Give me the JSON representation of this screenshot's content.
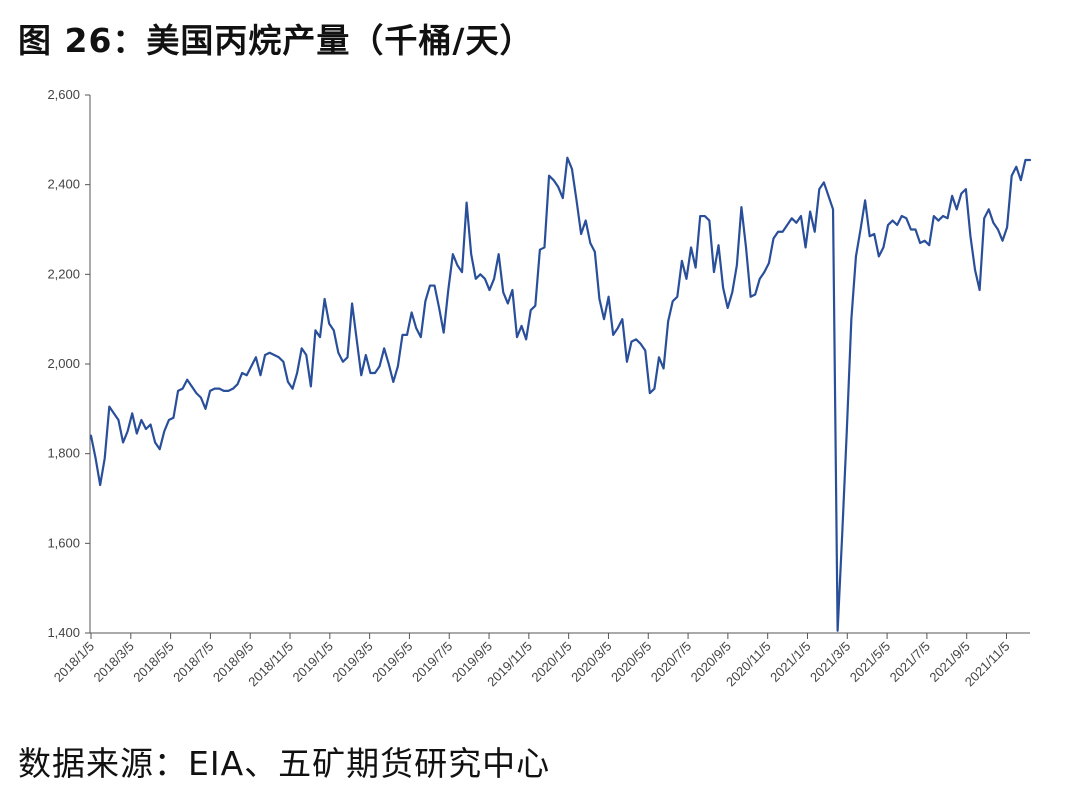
{
  "title": "图 26：美国丙烷产量（千桶/天）",
  "source": "数据来源：EIA、五矿期货研究中心",
  "colors": {
    "line": "#2a4f9a",
    "axis": "#555555"
  },
  "chart_data": {
    "type": "line",
    "title": "图 26：美国丙烷产量（千桶/天）",
    "ylim": [
      1400,
      2600
    ],
    "yticks": [
      "1,400",
      "1,600",
      "1,800",
      "2,000",
      "2,200",
      "2,400",
      "2,600"
    ],
    "xlabels": [
      "2018/1/5",
      "2018/3/5",
      "2018/5/5",
      "2018/7/5",
      "2018/9/5",
      "2018/11/5",
      "2019/1/5",
      "2019/3/5",
      "2019/5/5",
      "2019/7/5",
      "2019/9/5",
      "2019/11/5",
      "2020/1/5",
      "2020/3/5",
      "2020/5/5",
      "2020/7/5",
      "2020/9/5",
      "2020/11/5",
      "2021/1/5",
      "2021/3/5",
      "2021/5/5",
      "2021/7/5",
      "2021/9/5",
      "2021/11/5"
    ],
    "grid": false,
    "legend": "none",
    "series": [
      {
        "name": "",
        "frequency": "weekly",
        "values": [
          1840,
          1790,
          1730,
          1790,
          1905,
          1890,
          1875,
          1825,
          1850,
          1890,
          1845,
          1875,
          1855,
          1865,
          1825,
          1810,
          1850,
          1875,
          1880,
          1940,
          1945,
          1965,
          1950,
          1935,
          1925,
          1900,
          1940,
          1945,
          1945,
          1940,
          1940,
          1945,
          1955,
          1980,
          1975,
          1995,
          2015,
          1975,
          2020,
          2025,
          2020,
          2015,
          2005,
          1960,
          1945,
          1980,
          2035,
          2020,
          1950,
          2075,
          2060,
          2145,
          2090,
          2075,
          2025,
          2005,
          2015,
          2135,
          2055,
          1975,
          2020,
          1980,
          1980,
          1995,
          2035,
          2000,
          1960,
          1995,
          2065,
          2065,
          2115,
          2080,
          2060,
          2140,
          2175,
          2175,
          2125,
          2070,
          2165,
          2245,
          2220,
          2205,
          2360,
          2245,
          2190,
          2200,
          2190,
          2165,
          2190,
          2245,
          2160,
          2135,
          2165,
          2060,
          2085,
          2055,
          2120,
          2130,
          2255,
          2260,
          2420,
          2410,
          2395,
          2370,
          2460,
          2435,
          2365,
          2290,
          2320,
          2270,
          2250,
          2145,
          2100,
          2150,
          2065,
          2080,
          2100,
          2005,
          2050,
          2055,
          2045,
          2030,
          1935,
          1945,
          2015,
          1990,
          2095,
          2140,
          2150,
          2230,
          2190,
          2260,
          2215,
          2330,
          2330,
          2320,
          2205,
          2265,
          2170,
          2125,
          2160,
          2220,
          2350,
          2260,
          2150,
          2155,
          2190,
          2205,
          2225,
          2280,
          2295,
          2295,
          2310,
          2325,
          2315,
          2330,
          2260,
          2340,
          2295,
          2390,
          2405,
          2375,
          2345,
          1405,
          1620,
          1850,
          2100,
          2240,
          2300,
          2365,
          2285,
          2290,
          2240,
          2260,
          2310,
          2320,
          2310,
          2330,
          2325,
          2300,
          2300,
          2270,
          2275,
          2265,
          2330,
          2320,
          2330,
          2325,
          2375,
          2345,
          2380,
          2390,
          2285,
          2210,
          2165,
          2325,
          2345,
          2315,
          2300,
          2275,
          2305,
          2420,
          2440,
          2410,
          2455,
          2455
        ]
      }
    ]
  }
}
